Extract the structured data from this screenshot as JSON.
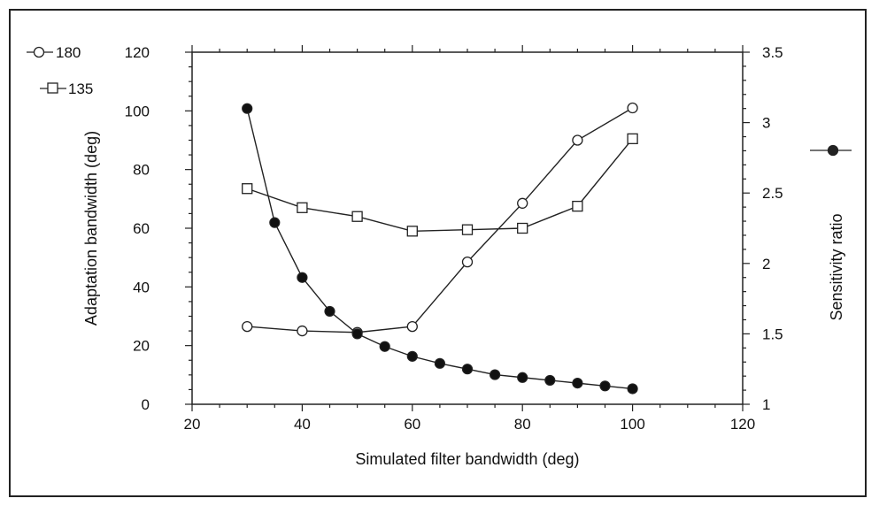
{
  "chart_data": {
    "type": "line",
    "xlabel": "Simulated filter bandwidth (deg)",
    "ylabel": "Adaptation bandwidth (deg)",
    "y2label": "Sensitivity ratio",
    "xlim": [
      20,
      120
    ],
    "ylim": [
      0,
      120
    ],
    "y2lim": [
      1,
      3.5
    ],
    "x_ticks": [
      20,
      40,
      60,
      80,
      100,
      120
    ],
    "y_ticks": [
      0,
      20,
      40,
      60,
      80,
      100,
      120
    ],
    "y2_ticks": [
      1,
      1.5,
      2,
      2.5,
      3,
      3.5
    ],
    "y2_tick_labels": [
      "1",
      "1.5",
      "2",
      "2.5",
      "3",
      "3.5"
    ],
    "grid": false,
    "series": [
      {
        "name": "180",
        "marker": "open-circle",
        "axis": "left",
        "x": [
          30,
          40,
          50,
          60,
          70,
          80,
          90,
          100
        ],
        "values": [
          26.5,
          25,
          24.5,
          26.5,
          48.5,
          68.5,
          90,
          101
        ]
      },
      {
        "name": "135",
        "marker": "open-square",
        "axis": "left",
        "x": [
          30,
          40,
          50,
          60,
          70,
          80,
          90,
          100
        ],
        "values": [
          73.5,
          67,
          64,
          59,
          59.5,
          60,
          67.5,
          90.5
        ]
      },
      {
        "name": "",
        "marker": "filled-circle",
        "axis": "right",
        "x": [
          30,
          35,
          40,
          45,
          50,
          55,
          60,
          65,
          70,
          75,
          80,
          85,
          90,
          95,
          100
        ],
        "values": [
          3.1,
          2.29,
          1.9,
          1.66,
          1.5,
          1.41,
          1.34,
          1.29,
          1.25,
          1.21,
          1.19,
          1.17,
          1.15,
          1.13,
          1.11
        ]
      }
    ],
    "legend_position": "top-left"
  }
}
